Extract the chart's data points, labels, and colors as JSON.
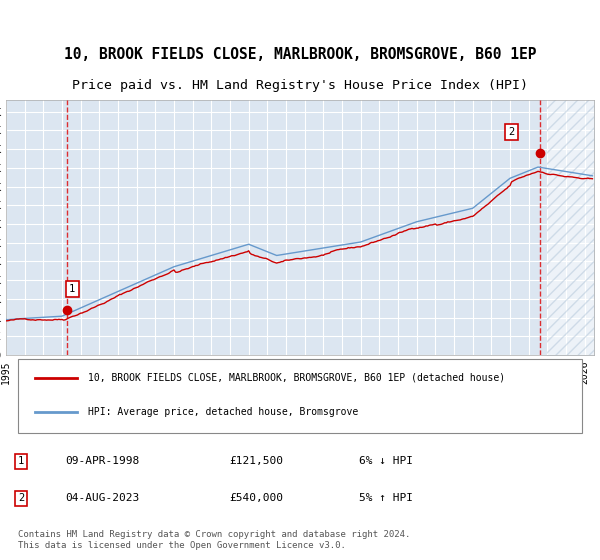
{
  "title_line1": "10, BROOK FIELDS CLOSE, MARLBROOK, BROMSGROVE, B60 1EP",
  "title_line2": "Price paid vs. HM Land Registry's House Price Index (HPI)",
  "background_color": "#dce6f1",
  "plot_bg_color": "#dce6f1",
  "hatch_color": "#b8c9de",
  "ylim": [
    0,
    680000
  ],
  "yticks": [
    0,
    50000,
    100000,
    150000,
    200000,
    250000,
    300000,
    350000,
    400000,
    450000,
    500000,
    550000,
    600000,
    650000
  ],
  "legend_label_red": "10, BROOK FIELDS CLOSE, MARLBROOK, BROMSGROVE, B60 1EP (detached house)",
  "legend_label_blue": "HPI: Average price, detached house, Bromsgrove",
  "footer": "Contains HM Land Registry data © Crown copyright and database right 2024.\nThis data is licensed under the Open Government Licence v3.0.",
  "sale1_label": "1",
  "sale1_date": "09-APR-1998",
  "sale1_price": "£121,500",
  "sale1_hpi": "6% ↓ HPI",
  "sale2_label": "2",
  "sale2_date": "04-AUG-2023",
  "sale2_price": "£540,000",
  "sale2_hpi": "5% ↑ HPI",
  "red_color": "#cc0000",
  "blue_color": "#6699cc",
  "dashed_red": "#dd0000"
}
